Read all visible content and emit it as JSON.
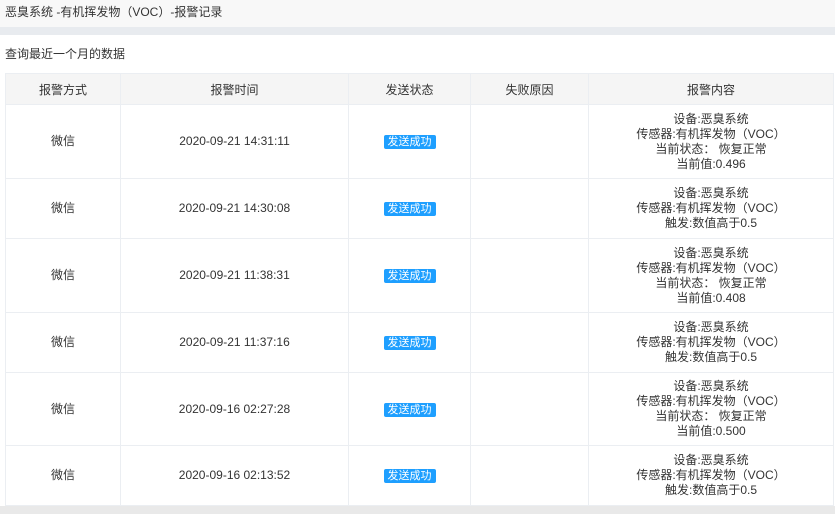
{
  "title": "恶臭系统 -有机挥发物（VOC）-报警记录",
  "query_label": "查询最近一个月的数据",
  "colors": {
    "badge": "#1e9fff",
    "header_bg": "#f5f5f5"
  },
  "columns": [
    "报警方式",
    "报警时间",
    "发送状态",
    "失败原因",
    "报警内容"
  ],
  "rows": [
    {
      "method": "微信",
      "time": "2020-09-21 14:31:11",
      "status": "发送成功",
      "reason": "",
      "content": [
        "设备:恶臭系统",
        "传感器:有机挥发物（VOC）",
        "当前状态： 恢复正常",
        "当前值:0.496"
      ]
    },
    {
      "method": "微信",
      "time": "2020-09-21 14:30:08",
      "status": "发送成功",
      "reason": "",
      "content": [
        "设备:恶臭系统",
        "传感器:有机挥发物（VOC）",
        "触发:数值高于0.5"
      ]
    },
    {
      "method": "微信",
      "time": "2020-09-21 11:38:31",
      "status": "发送成功",
      "reason": "",
      "content": [
        "设备:恶臭系统",
        "传感器:有机挥发物（VOC）",
        "当前状态： 恢复正常",
        "当前值:0.408"
      ]
    },
    {
      "method": "微信",
      "time": "2020-09-21 11:37:16",
      "status": "发送成功",
      "reason": "",
      "content": [
        "设备:恶臭系统",
        "传感器:有机挥发物（VOC）",
        "触发:数值高于0.5"
      ]
    },
    {
      "method": "微信",
      "time": "2020-09-16 02:27:28",
      "status": "发送成功",
      "reason": "",
      "content": [
        "设备:恶臭系统",
        "传感器:有机挥发物（VOC）",
        "当前状态： 恢复正常",
        "当前值:0.500"
      ]
    },
    {
      "method": "微信",
      "time": "2020-09-16 02:13:52",
      "status": "发送成功",
      "reason": "",
      "content": [
        "设备:恶臭系统",
        "传感器:有机挥发物（VOC）",
        "触发:数值高于0.5"
      ]
    }
  ]
}
